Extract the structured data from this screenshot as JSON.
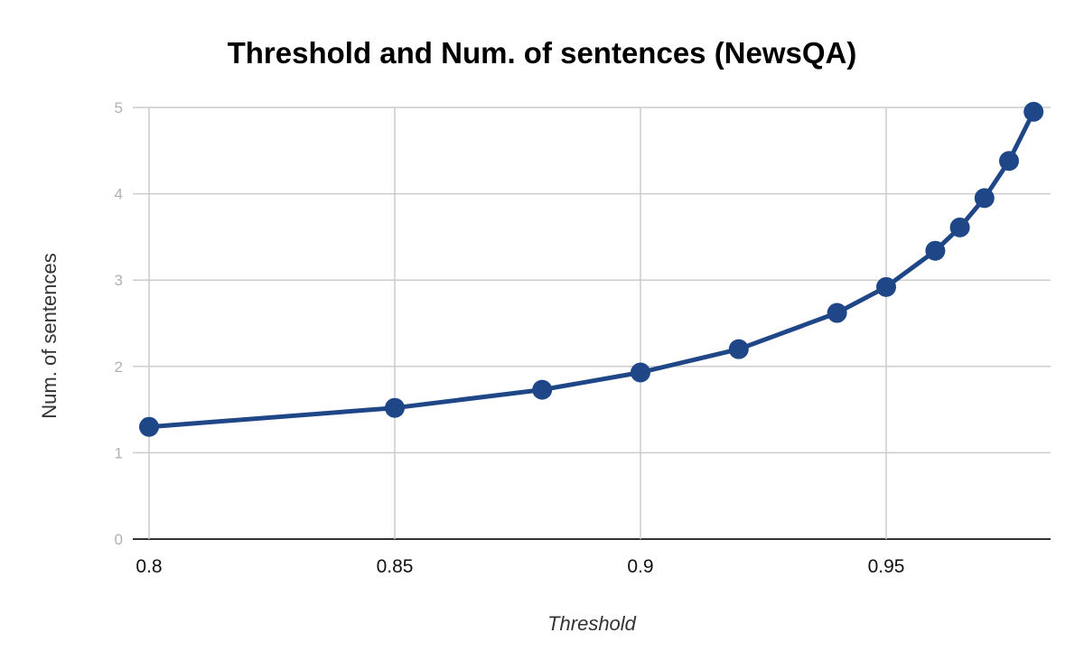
{
  "chart_data": {
    "type": "line",
    "title": "Threshold and Num. of sentences (NewsQA)",
    "xlabel": "Threshold",
    "ylabel": "Num. of sentences",
    "xlim": [
      0.8,
      0.984
    ],
    "ylim": [
      0,
      5
    ],
    "x_ticks": [
      "0.8",
      "0.85",
      "0.9",
      "0.95"
    ],
    "y_ticks": [
      "0",
      "1",
      "2",
      "3",
      "4",
      "5"
    ],
    "grid": true,
    "legend": "none",
    "series": [
      {
        "color": "#1f4788",
        "points": [
          {
            "x": 0.8,
            "y": 1.3
          },
          {
            "x": 0.85,
            "y": 1.52
          },
          {
            "x": 0.88,
            "y": 1.73
          },
          {
            "x": 0.9,
            "y": 1.93
          },
          {
            "x": 0.92,
            "y": 2.2
          },
          {
            "x": 0.94,
            "y": 2.62
          },
          {
            "x": 0.95,
            "y": 2.92
          },
          {
            "x": 0.96,
            "y": 3.34
          },
          {
            "x": 0.965,
            "y": 3.61
          },
          {
            "x": 0.97,
            "y": 3.95
          },
          {
            "x": 0.975,
            "y": 4.38
          },
          {
            "x": 0.98,
            "y": 4.95
          }
        ]
      }
    ],
    "colors": {
      "grid": "#cccccc",
      "axis": "#333333"
    }
  }
}
